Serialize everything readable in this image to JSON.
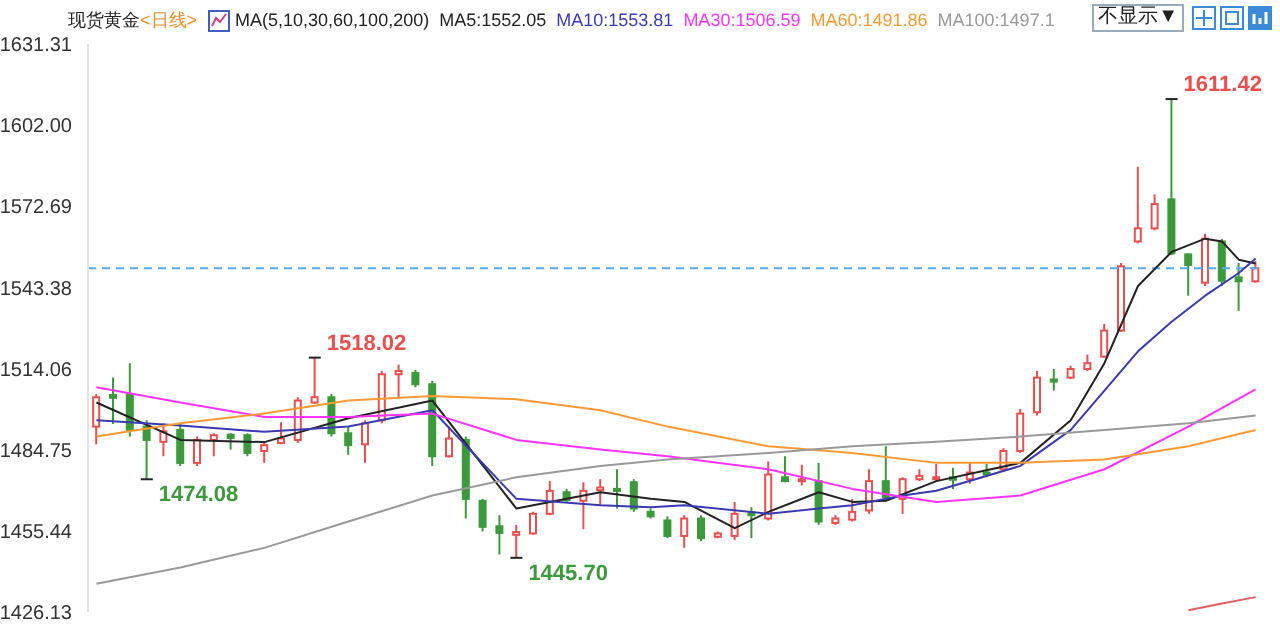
{
  "chart_data": {
    "type": "candlestick",
    "title": "现货黄金",
    "subtitle": "<日线>",
    "legend_title": "MA(5,10,30,60,100,200)",
    "legend": "top",
    "tick_labels": "y",
    "marker": "none",
    "line_style": "solid",
    "categories": [
      null,
      null,
      null,
      null,
      null,
      null,
      null,
      null,
      null,
      null,
      null,
      null,
      null,
      null,
      null,
      null,
      null,
      null,
      null,
      null,
      null,
      null,
      null,
      null,
      null,
      null,
      null,
      null,
      null,
      null,
      null,
      null,
      null,
      null,
      null,
      null,
      null,
      null,
      null,
      null,
      null,
      null,
      null,
      null,
      null,
      null,
      null,
      null,
      null,
      null,
      null,
      null,
      null,
      null,
      null,
      null,
      null,
      null,
      null,
      null,
      null,
      null,
      null,
      null,
      null,
      null,
      null,
      null,
      null,
      null
    ],
    "ohlc": [
      [
        1493.1,
        1504.9,
        1486.7,
        1503.7
      ],
      [
        1504.5,
        1510.8,
        1494.0,
        1503.5
      ],
      [
        1504.9,
        1516.0,
        1489.5,
        1491.9
      ],
      [
        1493.1,
        1495.4,
        1474.08,
        1488.3
      ],
      [
        1487.6,
        1494.3,
        1482.4,
        1491.4
      ],
      [
        1491.9,
        1494.3,
        1478.9,
        1480.0
      ],
      [
        1480.0,
        1489.5,
        1478.9,
        1488.3
      ],
      [
        1488.3,
        1490.7,
        1482.4,
        1490.0
      ],
      [
        1490.2,
        1490.7,
        1484.8,
        1489.0
      ],
      [
        1490.0,
        1490.7,
        1482.4,
        1483.6
      ],
      [
        1484.3,
        1487.2,
        1480.0,
        1486.4
      ],
      [
        1487.2,
        1494.7,
        1486.7,
        1488.8
      ],
      [
        1488.3,
        1503.7,
        1487.2,
        1502.5
      ],
      [
        1501.8,
        1518.02,
        1501.3,
        1503.7
      ],
      [
        1503.7,
        1504.9,
        1489.5,
        1490.7
      ],
      [
        1490.7,
        1493.1,
        1482.9,
        1486.4
      ],
      [
        1486.7,
        1495.4,
        1480.0,
        1494.3
      ],
      [
        1495.4,
        1513.2,
        1494.3,
        1512.0
      ],
      [
        1512.0,
        1515.5,
        1503.7,
        1513.2
      ],
      [
        1512.5,
        1513.6,
        1507.3,
        1508.4
      ],
      [
        1508.4,
        1509.6,
        1478.9,
        1482.4
      ],
      [
        1482.4,
        1493.1,
        1481.9,
        1488.8
      ],
      [
        1488.3,
        1489.5,
        1459.9,
        1467.0
      ],
      [
        1466.3,
        1467.0,
        1455.2,
        1456.9
      ],
      [
        1457.1,
        1461.1,
        1446.9,
        1454.7
      ],
      [
        1454.0,
        1457.6,
        1445.7,
        1455.0
      ],
      [
        1454.5,
        1462.3,
        1454.0,
        1461.6
      ],
      [
        1461.6,
        1473.4,
        1461.1,
        1469.9
      ],
      [
        1469.4,
        1470.6,
        1465.9,
        1466.6
      ],
      [
        1466.3,
        1473.0,
        1456.0,
        1469.9
      ],
      [
        1470.1,
        1474.1,
        1464.7,
        1471.1
      ],
      [
        1470.6,
        1477.7,
        1463.5,
        1469.9
      ],
      [
        1473.0,
        1474.1,
        1462.3,
        1463.5
      ],
      [
        1462.3,
        1463.5,
        1459.9,
        1460.7
      ],
      [
        1459.2,
        1460.7,
        1452.8,
        1453.6
      ],
      [
        1453.6,
        1461.1,
        1449.3,
        1459.9
      ],
      [
        1459.9,
        1461.1,
        1451.7,
        1452.8
      ],
      [
        1453.3,
        1455.2,
        1452.8,
        1454.5
      ],
      [
        1453.6,
        1465.9,
        1452.1,
        1461.6
      ],
      [
        1462.1,
        1464.0,
        1452.8,
        1461.1
      ],
      [
        1459.9,
        1480.5,
        1459.2,
        1475.8
      ],
      [
        1474.8,
        1482.4,
        1473.0,
        1473.4
      ],
      [
        1473.4,
        1479.3,
        1471.8,
        1474.1
      ],
      [
        1473.4,
        1480.0,
        1457.6,
        1458.8
      ],
      [
        1458.3,
        1461.1,
        1457.6,
        1459.9
      ],
      [
        1459.5,
        1467.0,
        1458.8,
        1462.3
      ],
      [
        1462.8,
        1477.7,
        1461.6,
        1473.4
      ],
      [
        1473.4,
        1486.0,
        1466.3,
        1467.7
      ],
      [
        1467.0,
        1474.8,
        1461.6,
        1474.1
      ],
      [
        1474.1,
        1477.7,
        1473.4,
        1475.3
      ],
      [
        1474.1,
        1479.6,
        1473.4,
        1474.8
      ],
      [
        1474.8,
        1478.2,
        1470.6,
        1473.9
      ],
      [
        1474.1,
        1480.0,
        1472.5,
        1476.5
      ],
      [
        1476.5,
        1479.6,
        1474.8,
        1475.8
      ],
      [
        1477.7,
        1485.3,
        1477.2,
        1484.3
      ],
      [
        1484.3,
        1499.5,
        1483.6,
        1497.8
      ],
      [
        1498.3,
        1513.2,
        1497.1,
        1510.8
      ],
      [
        1510.1,
        1513.9,
        1506.1,
        1509.6
      ],
      [
        1510.8,
        1515.1,
        1510.3,
        1513.9
      ],
      [
        1513.9,
        1519.1,
        1513.2,
        1516.0
      ],
      [
        1518.4,
        1530.2,
        1517.9,
        1527.8
      ],
      [
        1527.8,
        1552.2,
        1527.3,
        1551.0
      ],
      [
        1560.0,
        1587.0,
        1559.3,
        1564.7
      ],
      [
        1564.7,
        1577.0,
        1564.0,
        1573.5
      ],
      [
        1575.2,
        1611.42,
        1555.0,
        1555.7
      ],
      [
        1555.3,
        1555.7,
        1540.4,
        1551.5
      ],
      [
        1545.1,
        1562.8,
        1543.9,
        1561.0
      ],
      [
        1560.0,
        1560.9,
        1543.9,
        1545.8
      ],
      [
        1547.0,
        1552.2,
        1534.9,
        1545.6
      ],
      [
        1545.6,
        1552.9,
        1545.1,
        1550.3
      ]
    ],
    "colors": [
      "#e8504f",
      "#3c9a3c",
      "#3c9a3c",
      "#3c9a3c",
      "#e8504f",
      "#3c9a3c",
      "#e8504f",
      "#e8504f",
      "#3c9a3c",
      "#3c9a3c",
      "#e8504f",
      "#e8504f",
      "#e8504f",
      "#e8504f",
      "#3c9a3c",
      "#3c9a3c",
      "#e8504f",
      "#e8504f",
      "#e8504f",
      "#3c9a3c",
      "#3c9a3c",
      "#e8504f",
      "#3c9a3c",
      "#3c9a3c",
      "#3c9a3c",
      "#e8504f",
      "#e8504f",
      "#e8504f",
      "#3c9a3c",
      "#e8504f",
      "#e8504f",
      "#3c9a3c",
      "#3c9a3c",
      "#3c9a3c",
      "#3c9a3c",
      "#e8504f",
      "#3c9a3c",
      "#e8504f",
      "#e8504f",
      "#3c9a3c",
      "#e8504f",
      "#3c9a3c",
      "#e8504f",
      "#3c9a3c",
      "#e8504f",
      "#e8504f",
      "#e8504f",
      "#3c9a3c",
      "#e8504f",
      "#e8504f",
      "#e8504f",
      "#3c9a3c",
      "#e8504f",
      "#3c9a3c",
      "#e8504f",
      "#e8504f",
      "#e8504f",
      "#3c9a3c",
      "#e8504f",
      "#e8504f",
      "#e8504f",
      "#e8504f",
      "#e8504f",
      "#e8504f",
      "#3c9a3c",
      "#3c9a3c",
      "#e8504f",
      "#3c9a3c",
      "#3c9a3c",
      "#e8504f"
    ],
    "series": [
      {
        "type": "line",
        "name": "MA5:1552.05",
        "color": "#222222",
        "values": [
          1501.8,
          null,
          null,
          null,
          null,
          1488.3,
          null,
          null,
          null,
          null,
          1487.5,
          null,
          null,
          null,
          null,
          1496.1,
          null,
          null,
          null,
          null,
          1502.5,
          null,
          null,
          null,
          null,
          1463.5,
          null,
          null,
          null,
          null,
          1469.4,
          null,
          null,
          1467.0,
          null,
          1465.9,
          null,
          null,
          1456.4,
          null,
          1462.3,
          null,
          null,
          1469.4,
          null,
          1465.9,
          null,
          1466.3,
          null,
          null,
          1473.4,
          null,
          null,
          null,
          null,
          1480.0,
          null,
          null,
          1495.4,
          null,
          1516.0,
          null,
          1543.9,
          null,
          1556.2,
          null,
          1561.0,
          1560.0,
          1553.4,
          1552.05
        ]
      },
      {
        "type": "line",
        "name": "MA10:1553.81",
        "color": "#3a3ab0",
        "values": [
          1495.4,
          null,
          null,
          null,
          null,
          1493.5,
          null,
          null,
          null,
          null,
          1491.2,
          null,
          null,
          null,
          null,
          1493.1,
          null,
          null,
          null,
          null,
          1499.0,
          null,
          null,
          null,
          null,
          1467.0,
          null,
          null,
          null,
          null,
          1464.7,
          null,
          null,
          1464.0,
          null,
          1464.7,
          null,
          null,
          null,
          null,
          1461.6,
          null,
          null,
          1463.5,
          null,
          1464.7,
          null,
          null,
          1468.2,
          null,
          1469.9,
          null,
          null,
          null,
          null,
          1478.9,
          null,
          null,
          1491.9,
          null,
          1506.1,
          null,
          1520.3,
          null,
          1531.0,
          null,
          1540.4,
          null,
          1548.6,
          1553.81
        ]
      },
      {
        "type": "line",
        "name": "MA30:1506.59",
        "color": "#ff33ff",
        "values": [
          1507.3,
          null,
          null,
          null,
          null,
          1501.8,
          null,
          null,
          null,
          null,
          1496.6,
          null,
          null,
          null,
          null,
          1496.6,
          null,
          null,
          null,
          null,
          1497.8,
          null,
          null,
          null,
          null,
          1488.3,
          null,
          null,
          null,
          null,
          1484.8,
          null,
          null,
          null,
          1482.4,
          null,
          null,
          null,
          null,
          null,
          1477.7,
          null,
          null,
          null,
          null,
          1470.6,
          null,
          null,
          null,
          null,
          1465.9,
          null,
          null,
          null,
          null,
          1468.2,
          null,
          null,
          null,
          null,
          1477.7,
          null,
          null,
          null,
          null,
          1493.1,
          null,
          null,
          null,
          1506.59
        ]
      },
      {
        "type": "line",
        "name": "MA60:1491.86",
        "color": "#ff9933",
        "values": [
          1489.5,
          null,
          null,
          null,
          null,
          1494.3,
          null,
          null,
          null,
          null,
          1497.8,
          null,
          null,
          null,
          null,
          1502.5,
          null,
          null,
          null,
          null,
          1504.2,
          null,
          null,
          null,
          null,
          1503.0,
          null,
          null,
          null,
          null,
          1499.0,
          null,
          null,
          null,
          1493.1,
          null,
          null,
          null,
          null,
          null,
          1486.0,
          null,
          null,
          null,
          null,
          1483.6,
          null,
          null,
          null,
          null,
          1480.0,
          null,
          null,
          null,
          null,
          1480.0,
          null,
          null,
          null,
          null,
          1481.2,
          null,
          null,
          null,
          null,
          1486.0,
          null,
          null,
          null,
          1491.86
        ]
      },
      {
        "type": "line",
        "name": "MA100:1497.1",
        "color": "#999999",
        "values": [
          1436.3,
          null,
          null,
          null,
          null,
          1442.2,
          null,
          null,
          null,
          null,
          1449.3,
          null,
          null,
          null,
          null,
          1458.8,
          null,
          null,
          null,
          null,
          1468.2,
          null,
          null,
          null,
          null,
          1474.8,
          null,
          null,
          null,
          null,
          1478.9,
          null,
          null,
          null,
          1481.2,
          null,
          null,
          null,
          null,
          null,
          1483.6,
          null,
          null,
          null,
          null,
          1486.0,
          null,
          null,
          null,
          null,
          1487.6,
          null,
          null,
          null,
          null,
          1489.5,
          null,
          null,
          null,
          null,
          1491.9,
          null,
          null,
          null,
          null,
          1494.3,
          null,
          null,
          null,
          1497.1
        ]
      },
      {
        "type": "line",
        "color": "#e06060",
        "values": [
          null,
          null,
          null,
          null,
          null,
          null,
          null,
          null,
          null,
          null,
          null,
          null,
          null,
          null,
          null,
          null,
          null,
          null,
          null,
          null,
          null,
          null,
          null,
          null,
          null,
          null,
          null,
          null,
          null,
          null,
          null,
          null,
          null,
          null,
          null,
          null,
          null,
          null,
          null,
          null,
          null,
          null,
          null,
          null,
          null,
          null,
          null,
          null,
          null,
          null,
          null,
          null,
          null,
          null,
          null,
          null,
          null,
          null,
          null,
          null,
          null,
          null,
          null,
          null,
          null,
          1426.8,
          null,
          1429.2,
          null,
          1431.5
        ]
      }
    ],
    "ylim": [
      1426.13,
      1631.31
    ],
    "yticks": [
      1426.13,
      1455.44,
      1484.75,
      1514.06,
      1543.38,
      1572.69,
      {
        "value": 1602,
        "label": "1602.00"
      },
      1631.31
    ],
    "ref_lines": [
      {
        "axis": "y",
        "value": 1550.3,
        "color": "#55aaee",
        "line_style": "dashed"
      }
    ],
    "annotations": [
      "1611.42",
      "1518.02",
      "1474.08",
      "1445.70",
      "不显示▼"
    ]
  }
}
